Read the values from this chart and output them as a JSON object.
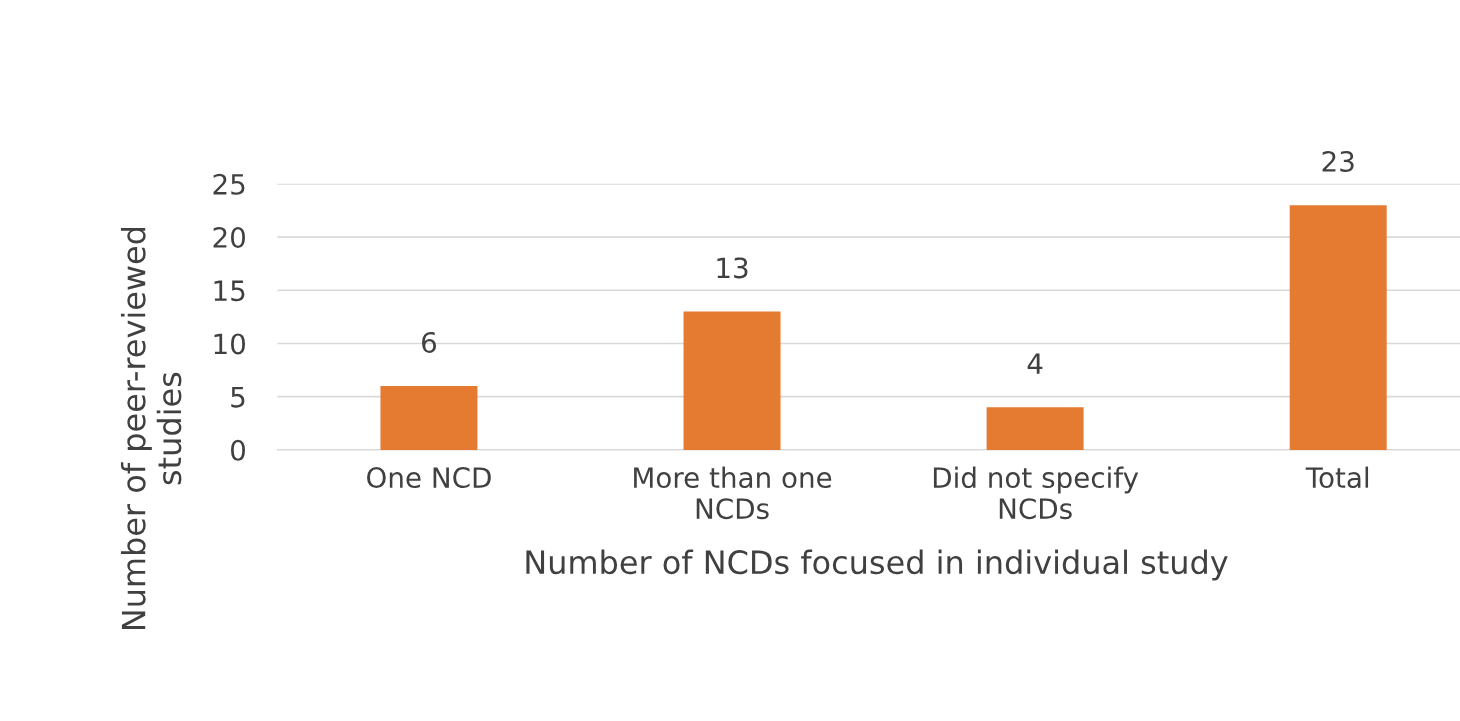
{
  "chart_data": {
    "type": "bar",
    "xlabel": "Number of NCDs focused in individual study",
    "ylabel": "Number of peer-reviewed\nstudies",
    "categories": [
      "One NCD",
      "More than one\nNCDs",
      "Did not specify\nNCDs",
      "Total"
    ],
    "values": [
      6,
      13,
      4,
      23
    ],
    "color": "#e57b30",
    "ylim": [
      0,
      25
    ],
    "yticks": [
      0,
      5,
      10,
      15,
      20,
      25
    ],
    "grid": "y",
    "data_labels": true
  }
}
